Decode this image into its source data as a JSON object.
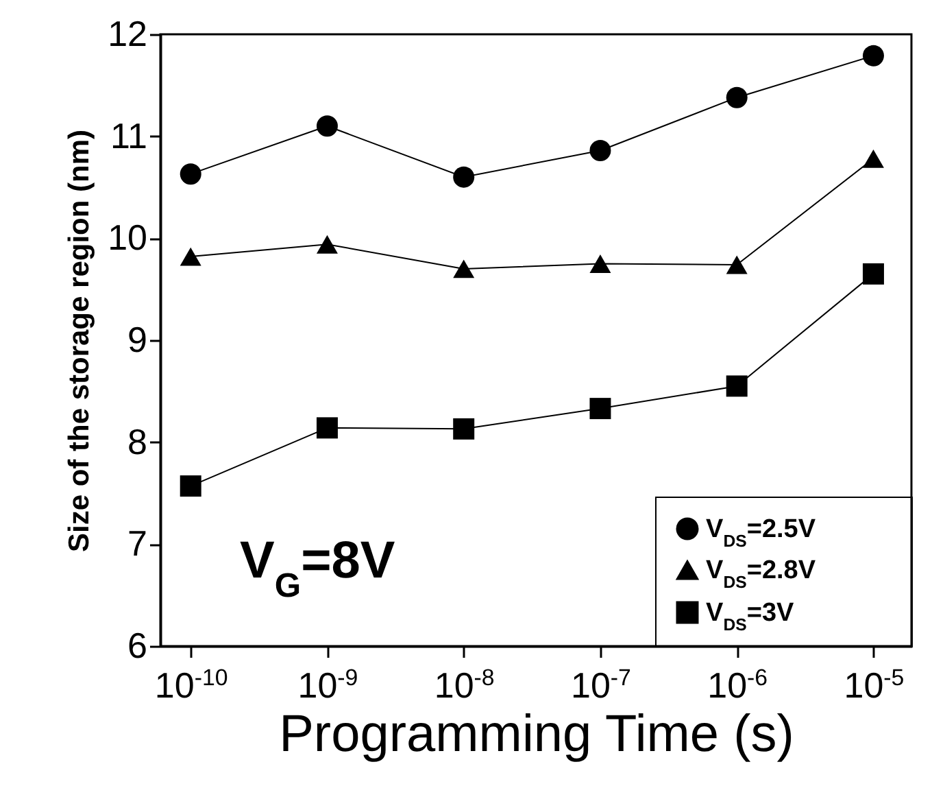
{
  "chart_data": {
    "type": "line",
    "xlabel": "Programming Time (s)",
    "ylabel": "Size of the storage region (nm)",
    "x": [
      1e-10,
      1e-09,
      1e-08,
      1e-07,
      1e-06,
      1e-05
    ],
    "series": [
      {
        "name": "V$_{DS}$=2.5V",
        "color": "#000000",
        "marker": "circle",
        "values": [
          10.63,
          11.1,
          10.6,
          10.86,
          11.38,
          11.79
        ]
      },
      {
        "name": "V$_{DS}$=2.8V",
        "color": "#000000",
        "marker": "triangle",
        "values": [
          9.82,
          9.94,
          9.7,
          9.75,
          9.74,
          10.78
        ]
      },
      {
        "name": "V$_{DS}$=3V",
        "color": "#000000",
        "marker": "square",
        "values": [
          7.57,
          8.14,
          8.13,
          8.33,
          8.55,
          9.65
        ]
      }
    ],
    "log": "x",
    "xlim": [
      6e-11,
      1.9e-05
    ],
    "xticks": [
      {
        "value": 1e-10,
        "label": "10$^{-10}$"
      },
      {
        "value": 1e-09,
        "label": "10$^{-9}$"
      },
      {
        "value": 1e-08,
        "label": "10$^{-8}$"
      },
      {
        "value": 1e-07,
        "label": "10$^{-7}$"
      },
      {
        "value": 1e-06,
        "label": "10$^{-6}$"
      },
      {
        "value": 1e-05,
        "label": "10$^{-5}$"
      }
    ],
    "ylim": [
      6,
      12
    ],
    "yticks": [
      6,
      7,
      8,
      9,
      10,
      11,
      12
    ],
    "grid": false,
    "legend": "bottom right",
    "line_style": "solid",
    "annotations": [
      "V$_{G}$=8V"
    ]
  }
}
